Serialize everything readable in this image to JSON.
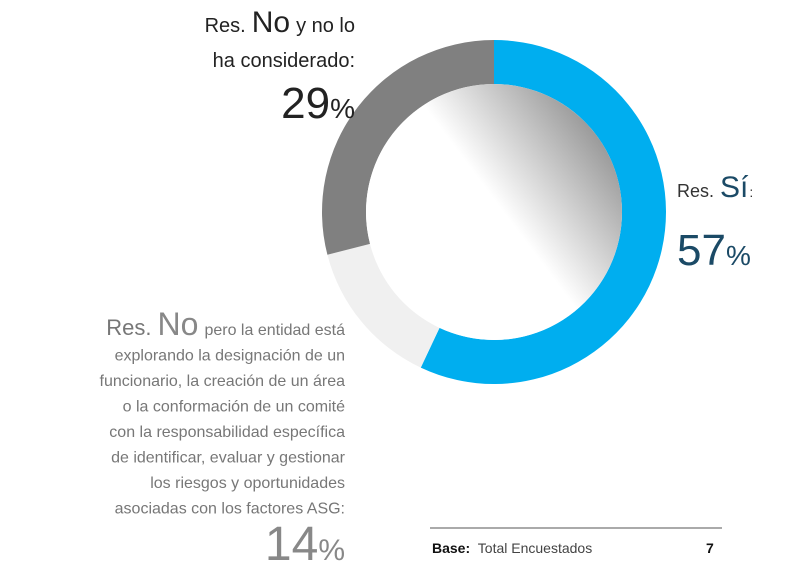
{
  "chart_data": {
    "type": "donut",
    "values": [
      57,
      14,
      29
    ],
    "unit": "%",
    "colors": [
      "#00aeef",
      "#f0f0f0",
      "#808080"
    ],
    "labels": [
      {
        "prefix": "Res.",
        "key": "Sí",
        "text": [
          ":"
        ]
      },
      {
        "prefix": "Res.",
        "key": "No",
        "text": [
          "pero la entidad está",
          "explorando la designación de un",
          "funcionario, la creación de un área",
          "o la conformación de un comité",
          "con la responsabilidad específica",
          "de identificar, evaluar y gestionar",
          "los riesgos y oportunidades",
          "asociadas con los factores ASG:"
        ]
      },
      {
        "prefix": "Res.",
        "key": "No",
        "text": [
          "y no lo",
          "ha considerado:"
        ]
      }
    ],
    "base": {
      "label": "Base:",
      "text": "Total Encuestados",
      "value": 7
    }
  }
}
